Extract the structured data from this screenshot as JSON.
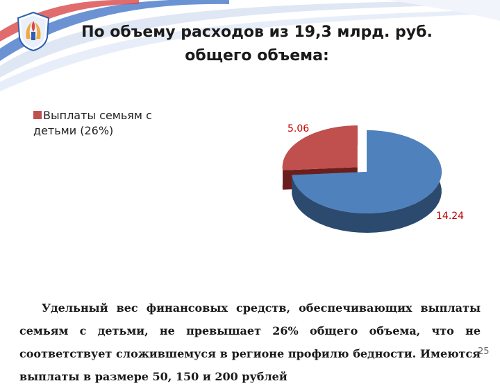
{
  "title_lines": [
    "По объему расходов из 19,3 млрд. руб.",
    "общего объема:"
  ],
  "chart_data": {
    "type": "pie",
    "title": "",
    "slices": [
      {
        "label": "Выплаты семьям с детьми (26%)",
        "value": 5.06,
        "data_label": "5.06",
        "color": "#c0504d",
        "side_color": "#6b1f1d"
      },
      {
        "label": "",
        "value": 14.24,
        "data_label": "14.24",
        "color": "#4f81bd",
        "side_color": "#2c4a6e"
      }
    ],
    "legend": {
      "position": "top-left",
      "entries": [
        "Выплаты семьям с детьми (26%)"
      ]
    },
    "data_label_color": "#c00000",
    "three_d": true,
    "exploded_slice": "Выплаты семьям с детьми (26%)"
  },
  "description": "Удельный вес финансовых средств, обеспечивающих выплаты семьям с детьми, не превышает 26% общего объема, что не соответствует сложившемуся в регионе профилю бедности. Имеются выплаты в размере 50, 150 и 200 рублей",
  "page_number": "25"
}
